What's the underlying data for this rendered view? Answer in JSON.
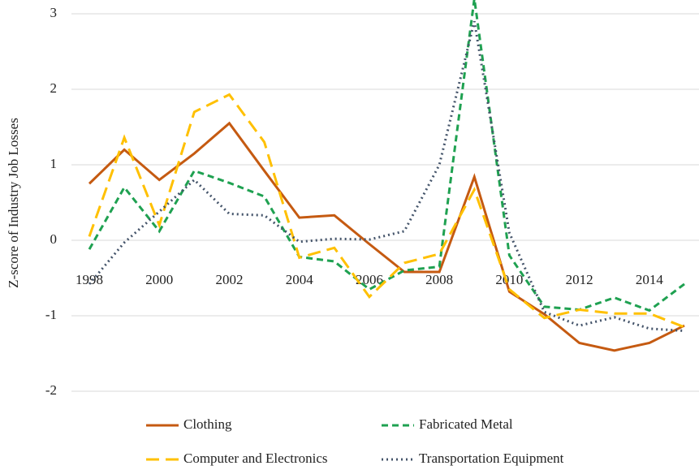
{
  "chart_data": {
    "type": "line",
    "y_label": "Z-score of Industry Job Losses",
    "x": [
      1998,
      1999,
      2000,
      2001,
      2002,
      2003,
      2004,
      2005,
      2006,
      2007,
      2008,
      2009,
      2010,
      2011,
      2012,
      2013,
      2014,
      2015
    ],
    "xlim": [
      1998,
      2015
    ],
    "xticks": [
      1998,
      2000,
      2002,
      2004,
      2006,
      2008,
      2010,
      2012,
      2014
    ],
    "ylim": [
      -2,
      3
    ],
    "yticks": [
      3,
      2,
      1,
      0,
      -1,
      -2
    ],
    "grid": true,
    "legend": "bottom",
    "series": [
      {
        "name": "Clothing",
        "color": "#c55a11",
        "dash": "solid",
        "values": [
          0.75,
          1.2,
          0.8,
          1.15,
          1.55,
          0.92,
          0.3,
          0.33,
          -0.05,
          -0.42,
          -0.42,
          0.84,
          -0.68,
          -0.98,
          -1.36,
          -1.46,
          -1.36,
          -1.13
        ]
      },
      {
        "name": "Fabricated Metal",
        "color": "#1fa151",
        "dash": "dashed",
        "values": [
          -0.12,
          0.7,
          0.12,
          0.92,
          0.76,
          0.58,
          -0.22,
          -0.28,
          -0.65,
          -0.4,
          -0.35,
          3.2,
          -0.2,
          -0.88,
          -0.92,
          -0.76,
          -0.93,
          -0.58
        ]
      },
      {
        "name": "Computer and Electronics",
        "color": "#ffc000",
        "dash": "longdash",
        "values": [
          0.05,
          1.36,
          0.2,
          1.7,
          1.93,
          1.3,
          -0.23,
          -0.1,
          -0.75,
          -0.3,
          -0.18,
          0.67,
          -0.65,
          -1.03,
          -0.92,
          -0.97,
          -0.97,
          -1.15
        ]
      },
      {
        "name": "Transportation Equipment",
        "color": "#44546a",
        "dash": "dotted",
        "values": [
          -0.58,
          -0.03,
          0.38,
          0.8,
          0.35,
          0.33,
          -0.02,
          0.02,
          0.01,
          0.12,
          1.0,
          2.9,
          0.1,
          -0.95,
          -1.13,
          -1.02,
          -1.17,
          -1.2
        ]
      }
    ]
  }
}
